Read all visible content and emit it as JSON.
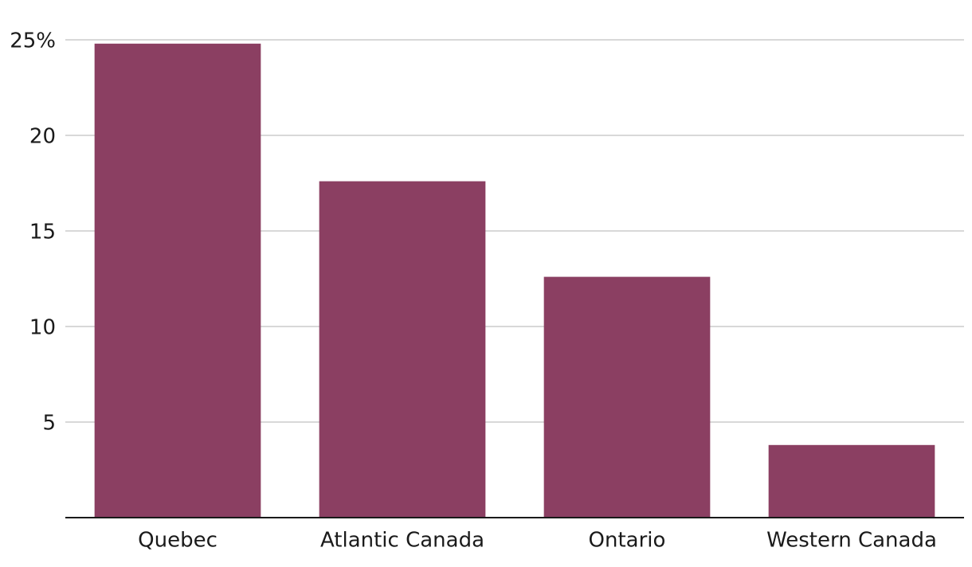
{
  "chart_data": {
    "type": "bar",
    "categories": [
      "Quebec",
      "Atlantic Canada",
      "Ontario",
      "Western Canada"
    ],
    "values": [
      24.8,
      17.6,
      12.6,
      3.8
    ],
    "color": "#8b3f62",
    "ylim": [
      0,
      25
    ],
    "yticks": [
      5,
      10,
      15,
      20,
      {
        "value": 25,
        "label": "25%"
      }
    ],
    "grid": true
  }
}
